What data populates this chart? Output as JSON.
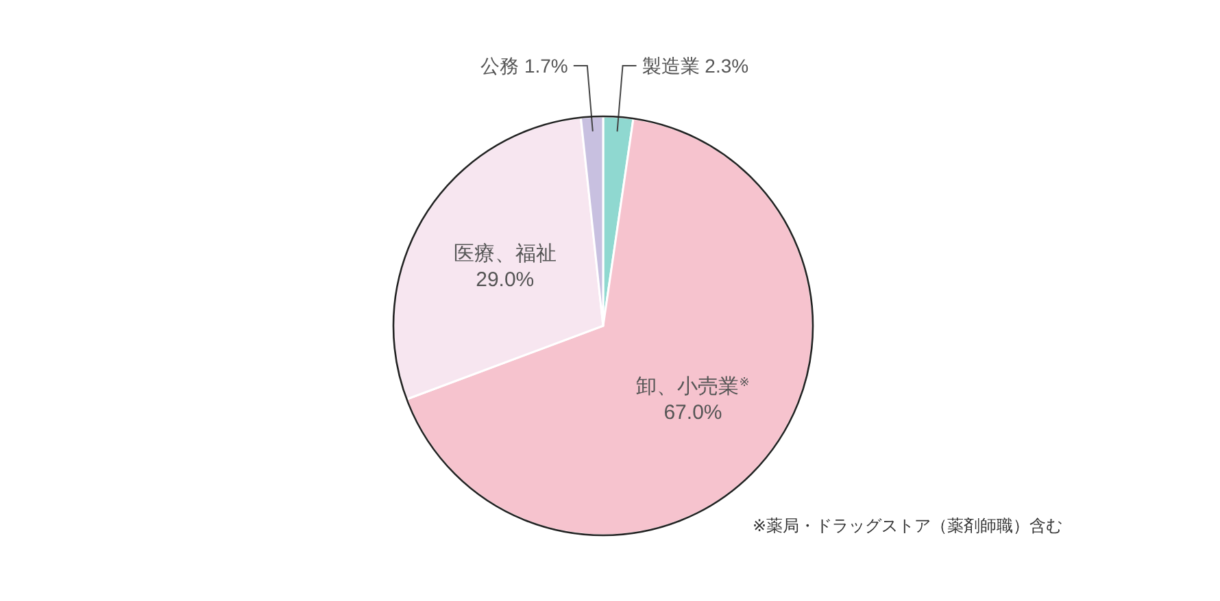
{
  "chart_data": {
    "type": "pie",
    "categories": [
      "製造業",
      "卸、小売業$^{※}$",
      "医療、福祉",
      "公務"
    ],
    "values": [
      2.3,
      67.0,
      29.0,
      1.7
    ],
    "value_labels": [
      "2.3%",
      "67.0%",
      "29.0%",
      "1.7%"
    ],
    "colors": [
      "#8fd8d0",
      "#f6c3ce",
      "#f7e6f0",
      "#c8c0e0"
    ],
    "annotations": [
      "※薬局・ドラッグストア（薬剤師職）含む"
    ]
  }
}
